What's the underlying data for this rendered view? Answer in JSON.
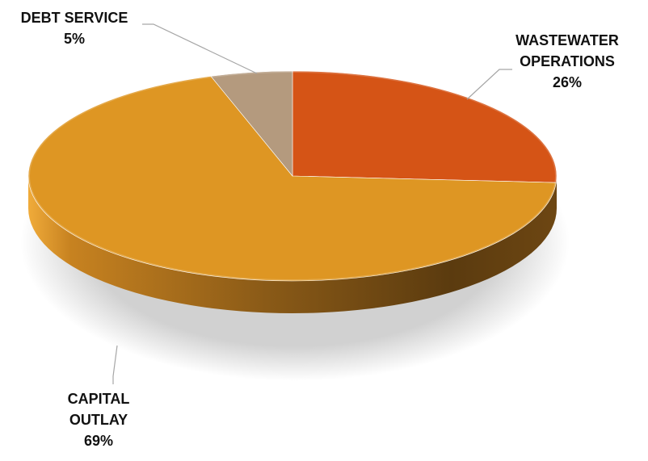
{
  "chart_data": {
    "type": "pie",
    "style": "3d",
    "slices": [
      {
        "label_lines": [
          "WASTEWATER",
          "OPERATIONS"
        ],
        "pct_label": "26%",
        "value": 26,
        "color": "#d55416"
      },
      {
        "label_lines": [
          "CAPITAL",
          "OUTLAY"
        ],
        "pct_label": "69%",
        "value": 69,
        "color": "#de9623"
      },
      {
        "label_lines": [
          "DEBT SERVICE"
        ],
        "pct_label": "5%",
        "value": 5,
        "color": "#b49a7e"
      }
    ]
  }
}
